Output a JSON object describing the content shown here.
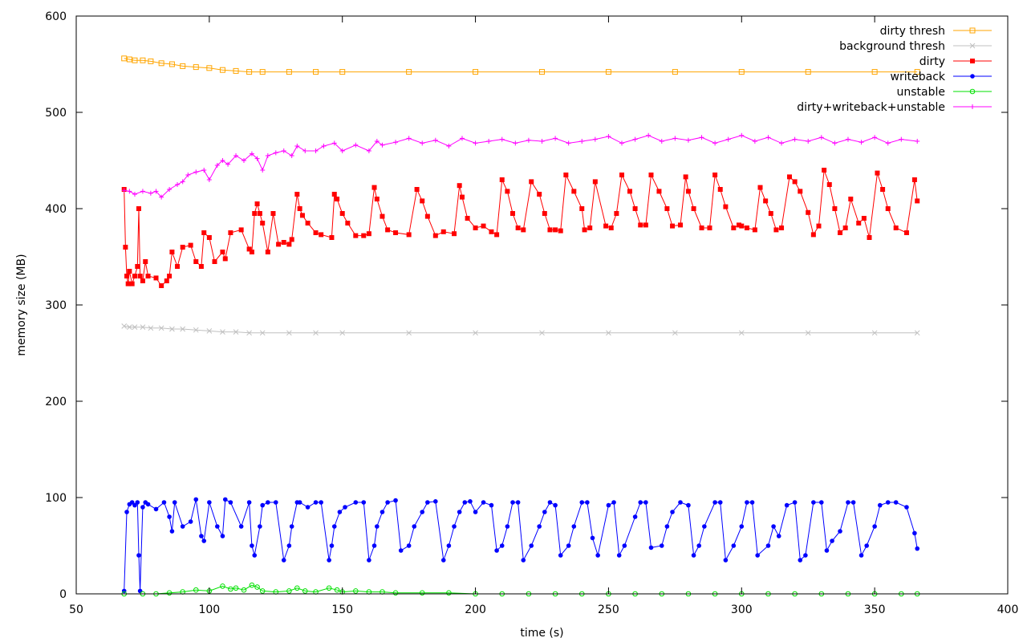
{
  "chart_data": {
    "type": "line",
    "title": "",
    "xlabel": "time (s)",
    "ylabel": "memory size (MB)",
    "xlim": [
      50,
      400
    ],
    "ylim": [
      0,
      600
    ],
    "xticks": [
      50,
      100,
      150,
      200,
      250,
      300,
      350,
      400
    ],
    "yticks": [
      0,
      100,
      200,
      300,
      400,
      500,
      600
    ],
    "grid": false,
    "legend_position": "top-right",
    "series": [
      {
        "name": "dirty thresh",
        "color": "#ffa500",
        "marker": "square-open",
        "x": [
          68,
          70,
          72,
          75,
          78,
          82,
          86,
          90,
          95,
          100,
          105,
          110,
          115,
          120,
          130,
          140,
          150,
          175,
          200,
          225,
          250,
          275,
          300,
          325,
          350,
          366
        ],
        "y": [
          556,
          555,
          554,
          554,
          553,
          551,
          550,
          548,
          547,
          546,
          544,
          543,
          542,
          542,
          542,
          542,
          542,
          542,
          542,
          542,
          542,
          542,
          542,
          542,
          542,
          542
        ]
      },
      {
        "name": "background thresh",
        "color": "#c0c0c0",
        "marker": "x",
        "x": [
          68,
          70,
          72,
          75,
          78,
          82,
          86,
          90,
          95,
          100,
          105,
          110,
          115,
          120,
          130,
          140,
          150,
          175,
          200,
          225,
          250,
          275,
          300,
          325,
          350,
          366
        ],
        "y": [
          278,
          277,
          277,
          277,
          276,
          276,
          275,
          275,
          274,
          273,
          272,
          272,
          271,
          271,
          271,
          271,
          271,
          271,
          271,
          271,
          271,
          271,
          271,
          271,
          271,
          271
        ]
      },
      {
        "name": "dirty",
        "color": "#ff0000",
        "marker": "square-filled",
        "x": [
          68,
          68.5,
          69,
          69.5,
          70,
          71,
          72,
          73,
          73.5,
          74,
          75,
          76,
          77,
          80,
          82,
          84,
          85,
          86,
          88,
          90,
          93,
          95,
          97,
          98,
          100,
          102,
          105,
          106,
          108,
          112,
          115,
          116,
          117,
          118,
          119,
          120,
          122,
          124,
          126,
          128,
          130,
          131,
          133,
          134,
          135,
          137,
          140,
          142,
          146,
          147,
          148,
          150,
          152,
          155,
          158,
          160,
          162,
          163,
          165,
          167,
          170,
          175,
          178,
          180,
          182,
          185,
          188,
          192,
          194,
          195,
          197,
          200,
          203,
          206,
          208,
          210,
          212,
          214,
          216,
          218,
          221,
          224,
          226,
          228,
          230,
          232,
          234,
          237,
          240,
          241,
          243,
          245,
          249,
          251,
          253,
          255,
          258,
          260,
          262,
          264,
          266,
          269,
          272,
          274,
          277,
          279,
          280,
          282,
          285,
          288,
          290,
          292,
          294,
          297,
          299,
          300,
          302,
          305,
          307,
          309,
          311,
          313,
          315,
          318,
          320,
          322,
          325,
          327,
          329,
          331,
          333,
          335,
          337,
          339,
          341,
          344,
          346,
          348,
          351,
          353,
          355,
          358,
          362,
          365,
          366
        ],
        "y": [
          420,
          360,
          330,
          322,
          335,
          322,
          330,
          340,
          400,
          330,
          325,
          345,
          330,
          328,
          320,
          325,
          330,
          355,
          340,
          360,
          362,
          345,
          340,
          375,
          370,
          345,
          355,
          348,
          375,
          378,
          358,
          355,
          395,
          405,
          395,
          385,
          355,
          395,
          363,
          365,
          363,
          368,
          415,
          400,
          393,
          385,
          375,
          373,
          370,
          415,
          410,
          395,
          385,
          372,
          372,
          374,
          422,
          410,
          392,
          378,
          375,
          373,
          420,
          408,
          392,
          372,
          376,
          374,
          424,
          412,
          390,
          380,
          382,
          376,
          373,
          430,
          418,
          395,
          380,
          378,
          428,
          415,
          395,
          378,
          378,
          377,
          435,
          418,
          400,
          378,
          380,
          428,
          382,
          380,
          395,
          435,
          418,
          400,
          383,
          383,
          435,
          418,
          400,
          382,
          383,
          433,
          418,
          400,
          380,
          380,
          435,
          420,
          402,
          380,
          383,
          382,
          380,
          378,
          422,
          408,
          395,
          378,
          380,
          433,
          428,
          418,
          396,
          373,
          382,
          440,
          425,
          400,
          375,
          380,
          410,
          385,
          390,
          370,
          437,
          420,
          400,
          380,
          375,
          430,
          408
        ]
      },
      {
        "name": "writeback",
        "color": "#0000ff",
        "marker": "circle-filled",
        "x": [
          68,
          69,
          70,
          71,
          72,
          73,
          73.5,
          74,
          75,
          76,
          77,
          80,
          83,
          85,
          86,
          87,
          90,
          93,
          95,
          97,
          98,
          100,
          103,
          105,
          106,
          108,
          112,
          115,
          116,
          117,
          119,
          120,
          122,
          125,
          128,
          130,
          131,
          133,
          134,
          137,
          140,
          142,
          145,
          146,
          147,
          149,
          151,
          155,
          158,
          160,
          162,
          163,
          165,
          167,
          170,
          172,
          175,
          177,
          180,
          182,
          185,
          188,
          190,
          192,
          194,
          196,
          198,
          200,
          203,
          206,
          208,
          210,
          212,
          214,
          216,
          218,
          221,
          224,
          226,
          228,
          230,
          232,
          235,
          237,
          240,
          242,
          244,
          246,
          250,
          252,
          254,
          256,
          260,
          262,
          264,
          266,
          270,
          272,
          274,
          277,
          280,
          282,
          284,
          286,
          290,
          292,
          294,
          297,
          300,
          302,
          304,
          306,
          310,
          312,
          314,
          317,
          320,
          322,
          324,
          327,
          330,
          332,
          334,
          337,
          340,
          342,
          345,
          347,
          350,
          352,
          355,
          358,
          362,
          365,
          366
        ],
        "y": [
          3,
          85,
          93,
          95,
          92,
          95,
          40,
          3,
          90,
          95,
          93,
          88,
          95,
          80,
          65,
          95,
          70,
          75,
          98,
          60,
          55,
          95,
          70,
          60,
          98,
          95,
          70,
          95,
          50,
          40,
          70,
          92,
          95,
          95,
          35,
          50,
          70,
          95,
          95,
          90,
          95,
          95,
          35,
          50,
          70,
          85,
          90,
          95,
          95,
          35,
          50,
          70,
          85,
          95,
          97,
          45,
          50,
          70,
          85,
          95,
          96,
          35,
          50,
          70,
          85,
          95,
          96,
          85,
          95,
          92,
          45,
          50,
          70,
          95,
          95,
          35,
          50,
          70,
          85,
          95,
          92,
          40,
          50,
          70,
          95,
          95,
          58,
          40,
          92,
          95,
          40,
          50,
          80,
          95,
          95,
          48,
          50,
          70,
          85,
          95,
          92,
          40,
          50,
          70,
          95,
          95,
          35,
          50,
          70,
          95,
          95,
          40,
          50,
          70,
          60,
          92,
          95,
          35,
          40,
          95,
          95,
          45,
          55,
          65,
          95,
          95,
          40,
          50,
          70,
          92,
          95,
          95,
          90,
          63,
          47
        ]
      },
      {
        "name": "unstable",
        "color": "#00e000",
        "marker": "circle-open",
        "x": [
          68,
          75,
          80,
          85,
          90,
          95,
          100,
          105,
          108,
          110,
          113,
          116,
          118,
          120,
          125,
          130,
          133,
          136,
          140,
          145,
          148,
          150,
          155,
          160,
          165,
          170,
          180,
          190,
          200,
          210,
          220,
          230,
          240,
          250,
          260,
          270,
          280,
          290,
          300,
          310,
          320,
          330,
          340,
          350,
          360,
          366
        ],
        "y": [
          0,
          0,
          0,
          1,
          2,
          4,
          3,
          8,
          5,
          6,
          4,
          9,
          7,
          3,
          2,
          3,
          6,
          3,
          2,
          6,
          4,
          2,
          3,
          2,
          2,
          1,
          1,
          1,
          0,
          0,
          0,
          0,
          0,
          0,
          0,
          0,
          0,
          0,
          0,
          0,
          0,
          0,
          0,
          0,
          0,
          0
        ]
      },
      {
        "name": "dirty+writeback+unstable",
        "color": "#ff00ff",
        "marker": "plus",
        "x": [
          68,
          70,
          72,
          75,
          78,
          80,
          82,
          85,
          88,
          90,
          92,
          95,
          98,
          100,
          103,
          105,
          107,
          110,
          113,
          116,
          118,
          120,
          122,
          125,
          128,
          131,
          133,
          136,
          140,
          143,
          147,
          150,
          155,
          160,
          163,
          165,
          170,
          175,
          180,
          185,
          190,
          195,
          200,
          205,
          210,
          215,
          220,
          225,
          230,
          235,
          240,
          245,
          250,
          255,
          260,
          265,
          270,
          275,
          280,
          285,
          290,
          295,
          300,
          305,
          310,
          315,
          320,
          325,
          330,
          335,
          340,
          345,
          350,
          355,
          360,
          366
        ],
        "y": [
          419,
          418,
          415,
          418,
          416,
          418,
          412,
          420,
          425,
          428,
          435,
          438,
          440,
          430,
          445,
          450,
          446,
          455,
          450,
          457,
          452,
          440,
          455,
          458,
          460,
          455,
          465,
          460,
          460,
          465,
          468,
          460,
          466,
          460,
          470,
          466,
          469,
          473,
          468,
          471,
          465,
          473,
          468,
          470,
          472,
          468,
          471,
          470,
          473,
          468,
          470,
          472,
          475,
          468,
          472,
          476,
          470,
          473,
          471,
          474,
          468,
          472,
          476,
          470,
          474,
          468,
          472,
          470,
          474,
          468,
          472,
          469,
          474,
          468,
          472,
          470
        ]
      }
    ]
  }
}
